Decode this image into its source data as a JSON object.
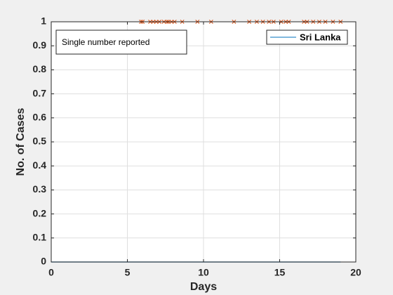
{
  "chart_data": {
    "type": "line",
    "xlabel": "Days",
    "ylabel": "No. of Cases",
    "xlim": [
      0,
      20
    ],
    "ylim": [
      0,
      1
    ],
    "xticks": [
      0,
      5,
      10,
      15,
      20
    ],
    "yticks": [
      0,
      0.1,
      0.2,
      0.3,
      0.4,
      0.5,
      0.6,
      0.7,
      0.8,
      0.9,
      1
    ],
    "grid": true,
    "legend_position": "top-right",
    "annotation": "Single number reported",
    "series": [
      {
        "name": "Sri Lanka",
        "kind": "line",
        "color": "#0072bd",
        "x": [
          0,
          19
        ],
        "y": [
          0,
          0
        ]
      },
      {
        "kind": "markers",
        "marker": "x",
        "color": "#d95319",
        "x": [
          5.9,
          6.0,
          6.5,
          6.7,
          6.9,
          7.1,
          7.4,
          7.6,
          7.7,
          7.9,
          8.1,
          8.6,
          9.6,
          10.5,
          12.0,
          13.0,
          13.5,
          13.9,
          14.3,
          14.6,
          15.1,
          15.4,
          15.6,
          16.6,
          16.8,
          17.2,
          17.6,
          18.0,
          18.5,
          19.0
        ],
        "y": [
          1,
          1,
          1,
          1,
          1,
          1,
          1,
          1,
          1,
          1,
          1,
          1,
          1,
          1,
          1,
          1,
          1,
          1,
          1,
          1,
          1,
          1,
          1,
          1,
          1,
          1,
          1,
          1,
          1,
          1
        ]
      }
    ]
  }
}
